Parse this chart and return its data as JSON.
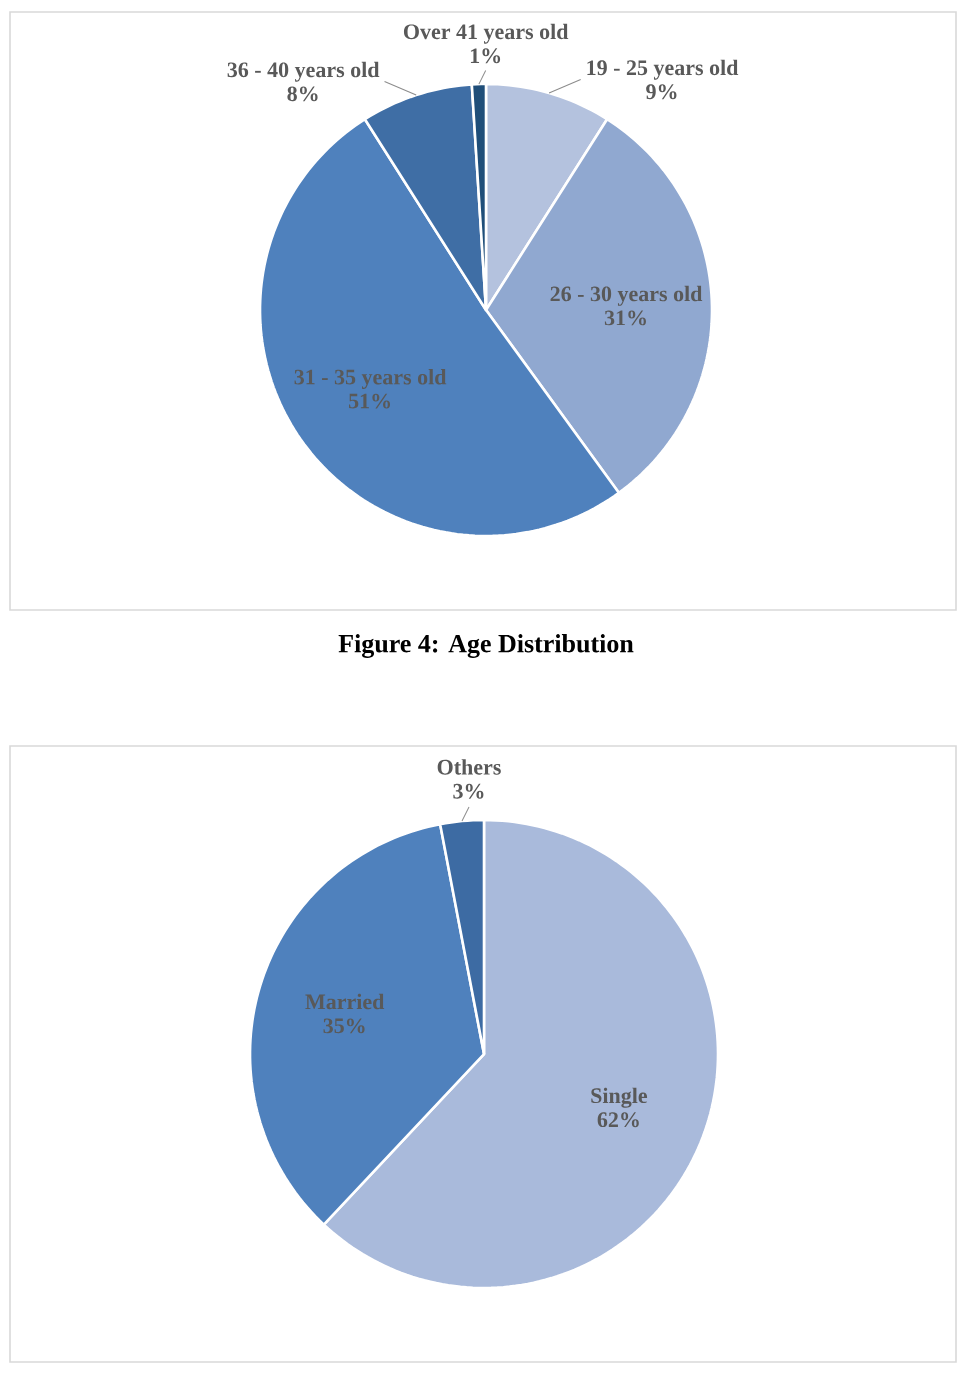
{
  "chart_data": [
    {
      "type": "pie",
      "categories": [
        "19 - 25 years old",
        "26 - 30 years old",
        "31 - 35 years old",
        "36 - 40 years old",
        "Over 41 years old"
      ],
      "values": [
        9,
        31,
        51,
        8,
        1
      ],
      "value_labels": [
        "9%",
        "31%",
        "51%",
        "8%",
        "1%"
      ],
      "colors": [
        "#b4c2de",
        "#90a8d0",
        "#4f81bd",
        "#3f6ea5",
        "#1f4e79"
      ],
      "annotations": [
        "Figure 4: Age Distribution"
      ]
    },
    {
      "type": "pie",
      "categories": [
        "Single",
        "Married",
        "Others"
      ],
      "values": [
        62,
        35,
        3
      ],
      "value_labels": [
        "62%",
        "35%",
        "3%"
      ],
      "colors": [
        "#a9badb",
        "#4f81bd",
        "#3d6ba3"
      ]
    }
  ]
}
